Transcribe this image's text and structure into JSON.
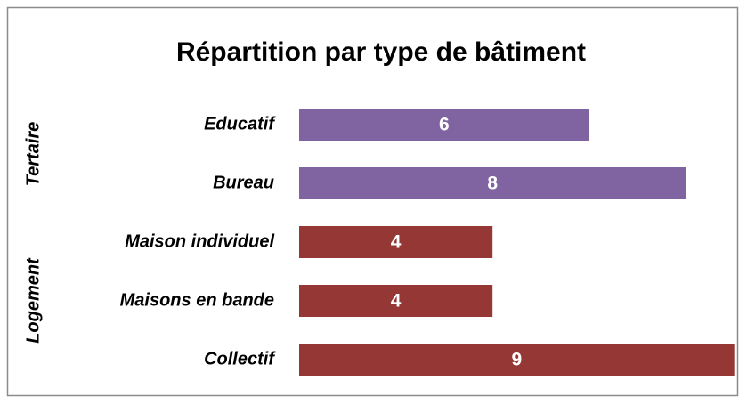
{
  "chart_data": {
    "type": "bar",
    "title": "Répartition par type de bâtiment",
    "groups": [
      {
        "name": "Tertaire",
        "color": "#8064a2",
        "categories": [
          "Educatif",
          "Bureau"
        ],
        "values": [
          6,
          8
        ]
      },
      {
        "name": "Logement",
        "color": "#953735",
        "categories": [
          "Maison individuel",
          "Maisons en bande",
          "Collectif"
        ],
        "values": [
          4,
          4,
          9
        ]
      }
    ]
  }
}
